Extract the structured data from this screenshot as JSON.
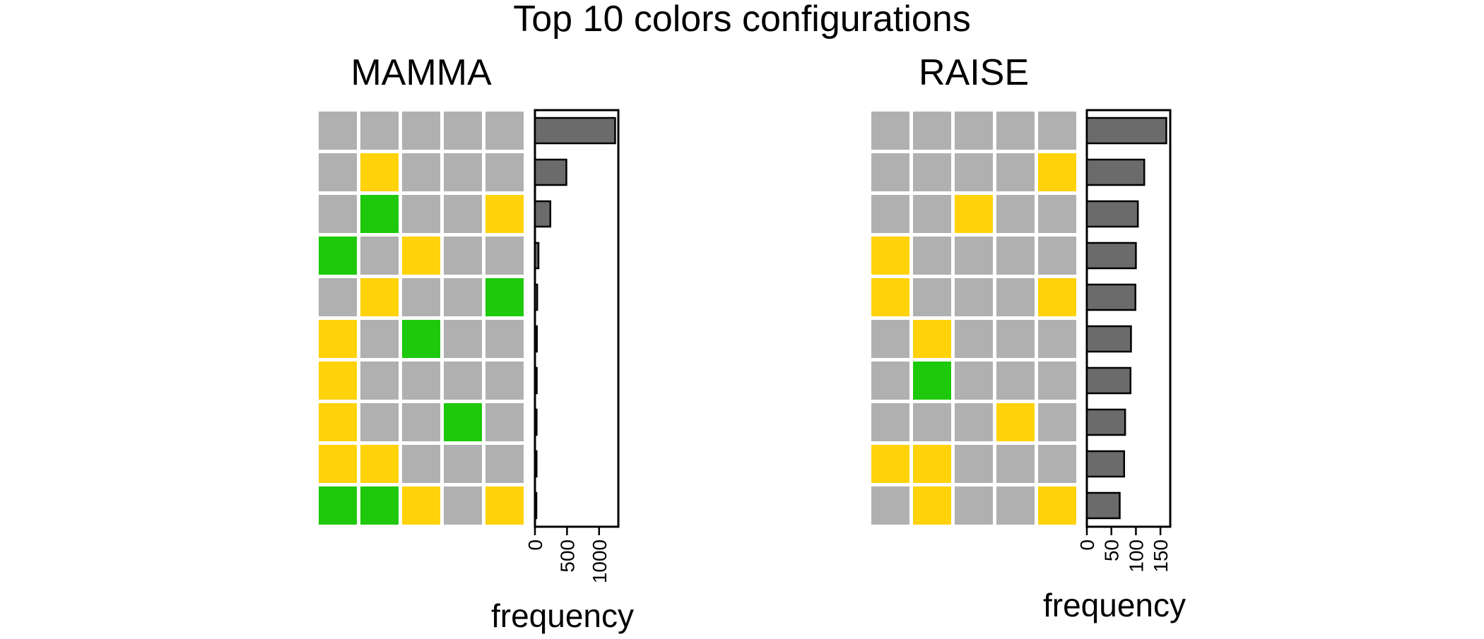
{
  "title": "Top 10 colors configurations",
  "colors": {
    "gray": "#b0b0b0",
    "yellow": "#ffd20a",
    "green": "#1ec80a",
    "bar": "#6b6b6b",
    "background": "#ffffff"
  },
  "chart_data": [
    {
      "type": "bar",
      "title": "MAMMA",
      "xlabel": "frequency",
      "ticks": [
        "0",
        "500",
        "1000"
      ],
      "tick_values": [
        0,
        500,
        1000
      ],
      "xlim": [
        0,
        1300
      ],
      "configurations": [
        [
          "gray",
          "gray",
          "gray",
          "gray",
          "gray"
        ],
        [
          "gray",
          "yellow",
          "gray",
          "gray",
          "gray"
        ],
        [
          "gray",
          "green",
          "gray",
          "gray",
          "yellow"
        ],
        [
          "green",
          "gray",
          "yellow",
          "gray",
          "gray"
        ],
        [
          "gray",
          "yellow",
          "gray",
          "gray",
          "green"
        ],
        [
          "yellow",
          "gray",
          "green",
          "gray",
          "gray"
        ],
        [
          "yellow",
          "gray",
          "gray",
          "gray",
          "gray"
        ],
        [
          "yellow",
          "gray",
          "gray",
          "green",
          "gray"
        ],
        [
          "yellow",
          "yellow",
          "gray",
          "gray",
          "gray"
        ],
        [
          "green",
          "green",
          "yellow",
          "gray",
          "yellow"
        ]
      ],
      "values": [
        1250,
        490,
        240,
        55,
        35,
        30,
        28,
        26,
        25,
        20
      ]
    },
    {
      "type": "bar",
      "title": "RAISE",
      "xlabel": "frequency",
      "ticks": [
        "0",
        "50",
        "100",
        "150"
      ],
      "tick_values": [
        0,
        50,
        100,
        150
      ],
      "xlim": [
        0,
        170
      ],
      "configurations": [
        [
          "gray",
          "gray",
          "gray",
          "gray",
          "gray"
        ],
        [
          "gray",
          "gray",
          "gray",
          "gray",
          "yellow"
        ],
        [
          "gray",
          "gray",
          "yellow",
          "gray",
          "gray"
        ],
        [
          "yellow",
          "gray",
          "gray",
          "gray",
          "gray"
        ],
        [
          "yellow",
          "gray",
          "gray",
          "gray",
          "yellow"
        ],
        [
          "gray",
          "yellow",
          "gray",
          "gray",
          "gray"
        ],
        [
          "gray",
          "green",
          "gray",
          "gray",
          "gray"
        ],
        [
          "gray",
          "gray",
          "gray",
          "yellow",
          "gray"
        ],
        [
          "yellow",
          "yellow",
          "gray",
          "gray",
          "gray"
        ],
        [
          "gray",
          "yellow",
          "gray",
          "gray",
          "yellow"
        ]
      ],
      "values": [
        162,
        117,
        104,
        100,
        99,
        90,
        89,
        78,
        76,
        67
      ]
    }
  ]
}
